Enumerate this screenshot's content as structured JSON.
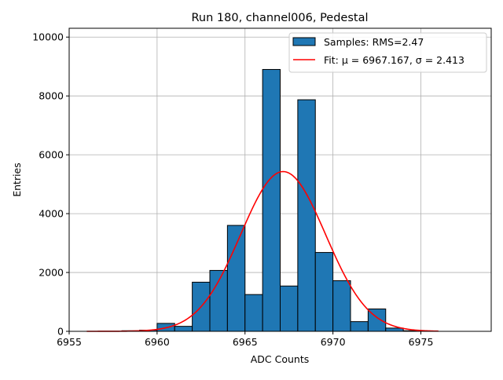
{
  "chart_data": {
    "type": "bar",
    "title": "Run 180, channel006, Pedestal",
    "xlabel": "ADC Counts",
    "ylabel": "Entries",
    "xlim": [
      6955,
      6979
    ],
    "ylim": [
      0,
      10300
    ],
    "xticks": [
      6955,
      6960,
      6965,
      6970,
      6975
    ],
    "yticks": [
      0,
      2000,
      4000,
      6000,
      8000,
      10000
    ],
    "grid": true,
    "legend_position": "top-right",
    "histogram": {
      "name": "Samples: RMS=2.47",
      "color": "#1f77b4",
      "bin_width": 1,
      "bin_left_edges": [
        6958,
        6959,
        6960,
        6961,
        6962,
        6963,
        6964,
        6965,
        6966,
        6967,
        6968,
        6969,
        6970,
        6971,
        6972,
        6973,
        6974
      ],
      "counts": [
        20,
        40,
        270,
        170,
        1670,
        2070,
        3600,
        1250,
        8900,
        1540,
        7870,
        2680,
        1720,
        330,
        760,
        110,
        20
      ]
    },
    "fit": {
      "name": "Fit: μ = 6967.167, σ = 2.413",
      "color": "#ff0000",
      "mu": 6967.167,
      "sigma": 2.413,
      "amplitude": 5430,
      "x_range": [
        6956,
        6976
      ]
    }
  }
}
